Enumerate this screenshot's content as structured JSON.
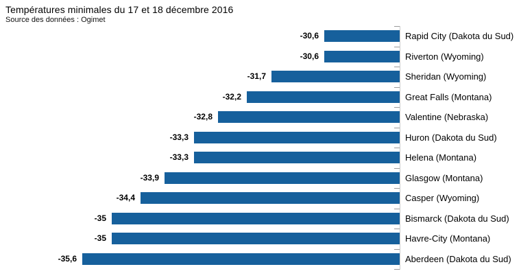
{
  "header": {
    "title": "Températures minimales du 17 et 18 décembre 2016",
    "subtitle": "Source des données : Ogimet"
  },
  "chart_data": {
    "type": "bar",
    "orientation": "horizontal",
    "title": "Températures minimales du 17 et 18 décembre 2016",
    "subtitle": "Source des données : Ogimet",
    "xlabel": "",
    "ylabel": "",
    "categories": [
      "Rapid City (Dakota du Sud)",
      "Riverton (Wyoming)",
      "Sheridan (Wyoming)",
      "Great Falls (Montana)",
      "Valentine (Nebraska)",
      "Huron (Dakota du Sud)",
      "Helena (Montana)",
      "Glasgow (Montana)",
      "Casper (Wyoming)",
      "Bismarck (Dakota du Sud)",
      "Havre-City (Montana)",
      "Aberdeen (Dakota du Sud)"
    ],
    "values": [
      -30.6,
      -30.6,
      -31.7,
      -32.2,
      -32.8,
      -33.3,
      -33.3,
      -33.9,
      -34.4,
      -35,
      -35,
      -35.6
    ],
    "value_labels": [
      "-30,6",
      "-30,6",
      "-31,7",
      "-32,2",
      "-32,8",
      "-33,3",
      "-33,3",
      "-33,9",
      "-34,4",
      "-35",
      "-35",
      "-35,6"
    ],
    "xlim": [
      -36.55,
      -29.05
    ],
    "category_axis_side": "right",
    "grid": false,
    "legend": false,
    "bar_color": "#16609C",
    "axis_line_color": "#cccccc",
    "tick_color": "#9a9a9a"
  }
}
